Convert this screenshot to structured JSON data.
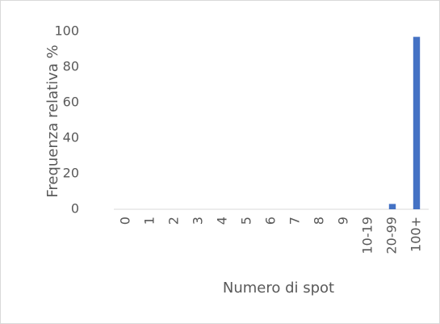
{
  "chart_data": {
    "type": "bar",
    "categories": [
      "0",
      "1",
      "2",
      "3",
      "4",
      "5",
      "6",
      "7",
      "8",
      "9",
      "10-19",
      "20-99",
      "100+"
    ],
    "values": [
      0,
      0,
      0,
      0,
      0,
      0,
      0,
      0,
      0,
      0,
      0,
      3,
      97
    ],
    "color": "#4472c4",
    "ylim": [
      0,
      100
    ],
    "yticks": [
      0,
      20,
      40,
      60,
      80,
      100
    ],
    "grid": false,
    "ylabel": "Frequenza relativa %",
    "xlabel": "Numero di spot"
  }
}
